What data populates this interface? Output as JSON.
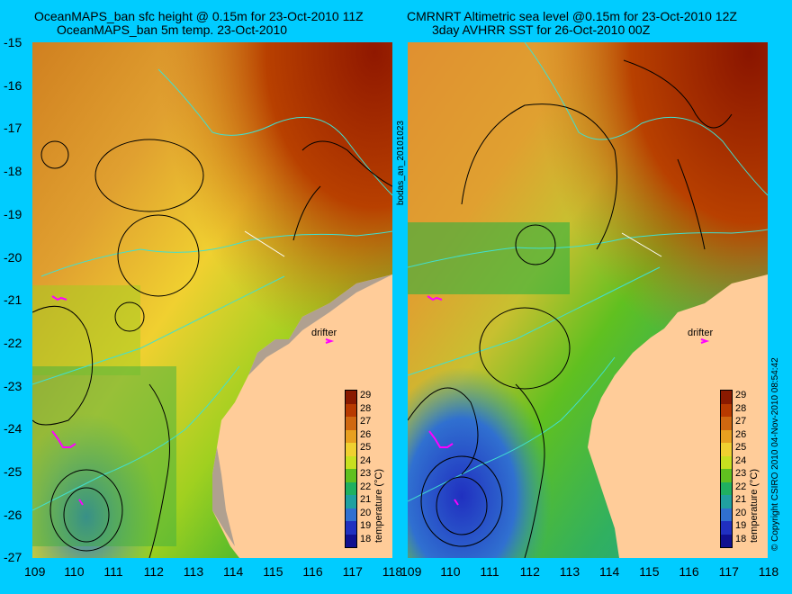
{
  "left_panel": {
    "title_line1": "OceanMAPS_ban sfc height @ 0.15m for 23-Oct-2010 11Z",
    "title_line2": "OceanMAPS_ban 5m temp. 23-Oct-2010"
  },
  "right_panel": {
    "title_line1": "CMRNRT Altimetric sea level  @0.15m  for 23-Oct-2010 12Z",
    "title_line2": "3day AVHRR SST for 26-Oct-2010 00Z"
  },
  "drifter_label": "drifter",
  "center_vertical_label": "bodas_an_20101023",
  "copyright_label": "© Copyright CSIRO 2010   04-Nov-2010 08:54:42",
  "y_ticks": [
    "-15",
    "-16",
    "-17",
    "-18",
    "-19",
    "-20",
    "-21",
    "-22",
    "-23",
    "-24",
    "-25",
    "-26",
    "-27"
  ],
  "x_ticks": [
    "109",
    "110",
    "111",
    "112",
    "113",
    "114",
    "115",
    "116",
    "117",
    "118"
  ],
  "colorbar": {
    "title": "temperature (°C)",
    "labels": [
      "29",
      "28",
      "27",
      "26",
      "25",
      "24",
      "23",
      "22",
      "21",
      "20",
      "19",
      "18"
    ],
    "colors": [
      "#8a1a00",
      "#b83a00",
      "#d06810",
      "#e8a020",
      "#f0d030",
      "#c8e020",
      "#60c020",
      "#20b060",
      "#20a0a0",
      "#3070d0",
      "#2030c0",
      "#101090"
    ]
  },
  "colors": {
    "background": "#00ccff",
    "land": "#ffcc99",
    "coastline": "#40e0d0"
  }
}
